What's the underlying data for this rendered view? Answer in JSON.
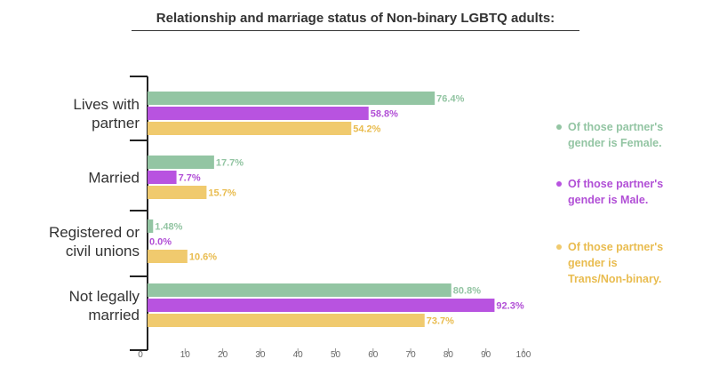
{
  "chart_data": {
    "type": "bar",
    "orientation": "horizontal",
    "title": "Relationship and marriage status of Non-binary LGBTQ adults:",
    "categories": [
      [
        "Lives with",
        "partner"
      ],
      [
        "Married"
      ],
      [
        "Registered or",
        "civil unions"
      ],
      [
        "Not legally",
        "married"
      ]
    ],
    "series": [
      {
        "name": "Of those partner's gender is Female.",
        "color": "#93c5a3",
        "values": [
          76.4,
          17.7,
          1.48,
          80.8
        ],
        "labels": [
          "76.4%",
          "17.7%",
          "1.48%",
          "80.8%"
        ],
        "label_color": "#93c5a3"
      },
      {
        "name": "Of those partner's gender is Male.",
        "color": "#b853e0",
        "values": [
          58.8,
          7.7,
          0.0,
          92.3
        ],
        "labels": [
          "58.8%",
          "7.7%",
          "0.0%",
          "92.3%"
        ],
        "label_color": "#b14fd6"
      },
      {
        "name": "Of those partner's gender is Trans/Non-binary.",
        "color": "#f0ca6e",
        "values": [
          54.2,
          15.7,
          10.6,
          73.7
        ],
        "labels": [
          "54.2%",
          "15.7%",
          "10.6%",
          "73.7%"
        ],
        "label_color": "#e9bc4f"
      }
    ],
    "xlim": [
      0,
      100
    ],
    "xticks": [
      "0",
      "10",
      "20",
      "30",
      "40",
      "50",
      "60",
      "70",
      "80",
      "90",
      "100"
    ],
    "legend": {
      "placement": "right",
      "items": [
        [
          "Of those partner's",
          "gender is Female."
        ],
        [
          "Of those partner's",
          "gender is Male."
        ],
        [
          "Of those partner's",
          "gender is",
          "Trans/Non-binary."
        ]
      ]
    }
  }
}
